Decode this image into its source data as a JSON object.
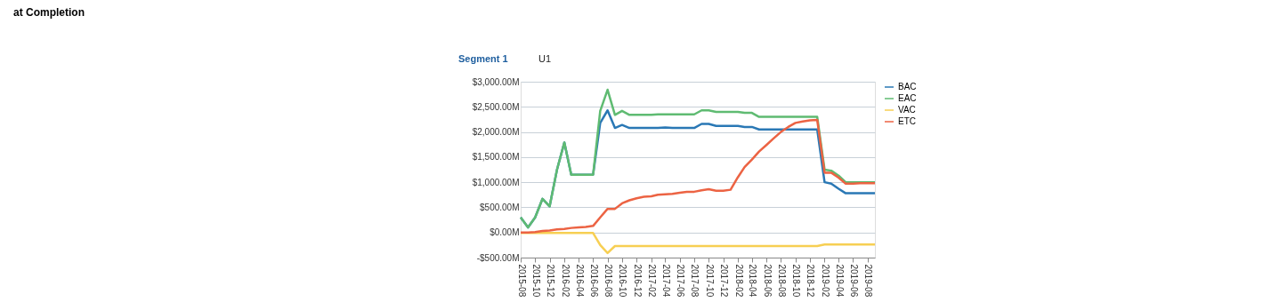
{
  "chart_data": {
    "type": "line",
    "title": "at Completion",
    "annotations": [
      "Segment 1",
      "U1"
    ],
    "x": [
      "2015-08",
      "2015-09",
      "2015-10",
      "2015-11",
      "2015-12",
      "2016-01",
      "2016-02",
      "2016-03",
      "2016-04",
      "2016-05",
      "2016-06",
      "2016-07",
      "2016-08",
      "2016-09",
      "2016-10",
      "2016-11",
      "2016-12",
      "2017-01",
      "2017-02",
      "2017-03",
      "2017-04",
      "2017-05",
      "2017-06",
      "2017-07",
      "2017-08",
      "2017-09",
      "2017-10",
      "2017-11",
      "2017-12",
      "2018-01",
      "2018-02",
      "2018-03",
      "2018-04",
      "2018-05",
      "2018-06",
      "2018-07",
      "2018-08",
      "2018-09",
      "2018-10",
      "2018-11",
      "2018-12",
      "2019-01",
      "2019-02",
      "2019-03",
      "2019-04",
      "2019-05",
      "2019-06",
      "2019-07",
      "2019-08",
      "2019-09"
    ],
    "series": [
      {
        "name": "BAC",
        "color": "#2a78b5",
        "values": [
          300,
          100,
          300,
          670,
          520,
          1250,
          1790,
          1150,
          1150,
          1150,
          1150,
          2180,
          2430,
          2080,
          2140,
          2080,
          2080,
          2080,
          2080,
          2080,
          2090,
          2080,
          2080,
          2080,
          2080,
          2160,
          2160,
          2120,
          2120,
          2120,
          2120,
          2100,
          2100,
          2050,
          2050,
          2050,
          2050,
          2050,
          2050,
          2050,
          2050,
          2050,
          1000,
          970,
          870,
          780,
          780,
          780,
          780,
          780
        ]
      },
      {
        "name": "EAC",
        "color": "#5fbb72",
        "values": [
          300,
          100,
          300,
          670,
          520,
          1250,
          1790,
          1150,
          1150,
          1150,
          1150,
          2420,
          2840,
          2340,
          2420,
          2340,
          2340,
          2340,
          2340,
          2350,
          2350,
          2350,
          2350,
          2350,
          2350,
          2430,
          2430,
          2400,
          2400,
          2400,
          2400,
          2380,
          2380,
          2300,
          2300,
          2300,
          2300,
          2300,
          2300,
          2300,
          2300,
          2300,
          1250,
          1230,
          1130,
          1000,
          1000,
          1000,
          1000,
          1000
        ]
      },
      {
        "name": "VAC",
        "color": "#f7cf53",
        "values": [
          -10,
          -10,
          -10,
          -10,
          -10,
          -10,
          -10,
          -10,
          -10,
          -10,
          -10,
          -250,
          -410,
          -270,
          -270,
          -270,
          -270,
          -270,
          -270,
          -270,
          -270,
          -270,
          -270,
          -270,
          -270,
          -270,
          -270,
          -270,
          -270,
          -270,
          -270,
          -270,
          -270,
          -270,
          -270,
          -270,
          -270,
          -270,
          -270,
          -270,
          -270,
          -270,
          -240,
          -240,
          -240,
          -240,
          -240,
          -240,
          -240,
          -240
        ]
      },
      {
        "name": "ETC",
        "color": "#ec6343",
        "values": [
          0,
          0,
          10,
          30,
          40,
          60,
          70,
          90,
          100,
          110,
          130,
          300,
          470,
          470,
          580,
          640,
          680,
          710,
          720,
          750,
          760,
          770,
          790,
          810,
          810,
          840,
          860,
          830,
          830,
          850,
          1100,
          1300,
          1450,
          1610,
          1740,
          1870,
          2000,
          2100,
          2180,
          2210,
          2230,
          2240,
          1190,
          1190,
          1090,
          970,
          970,
          980,
          980,
          980
        ]
      }
    ],
    "xlim": [
      "2015-08",
      "2019-09"
    ],
    "xticks": [
      "2015-08",
      "2015-10",
      "2015-12",
      "2016-02",
      "2016-04",
      "2016-06",
      "2016-08",
      "2016-10",
      "2016-12",
      "2017-02",
      "2017-04",
      "2017-06",
      "2017-08",
      "2017-10",
      "2017-12",
      "2018-02",
      "2018-04",
      "2018-06",
      "2018-08",
      "2018-10",
      "2018-12",
      "2019-02",
      "2019-04",
      "2019-06",
      "2019-08"
    ],
    "ylim": [
      -500,
      3000
    ],
    "yticks": [
      {
        "value": -500,
        "label": "-$500.00M"
      },
      {
        "value": 0,
        "label": "$0.00M"
      },
      {
        "value": 500,
        "label": "$500.00M"
      },
      {
        "value": 1000,
        "label": "$1,000.00M"
      },
      {
        "value": 1500,
        "label": "$1,500.00M"
      },
      {
        "value": 2000,
        "label": "$2,000.00M"
      },
      {
        "value": 2500,
        "label": "$2,500.00M"
      },
      {
        "value": 3000,
        "label": "$3,000.00M"
      }
    ],
    "grid": "y",
    "legend": "right",
    "marker": "none",
    "line_style": "solid"
  }
}
